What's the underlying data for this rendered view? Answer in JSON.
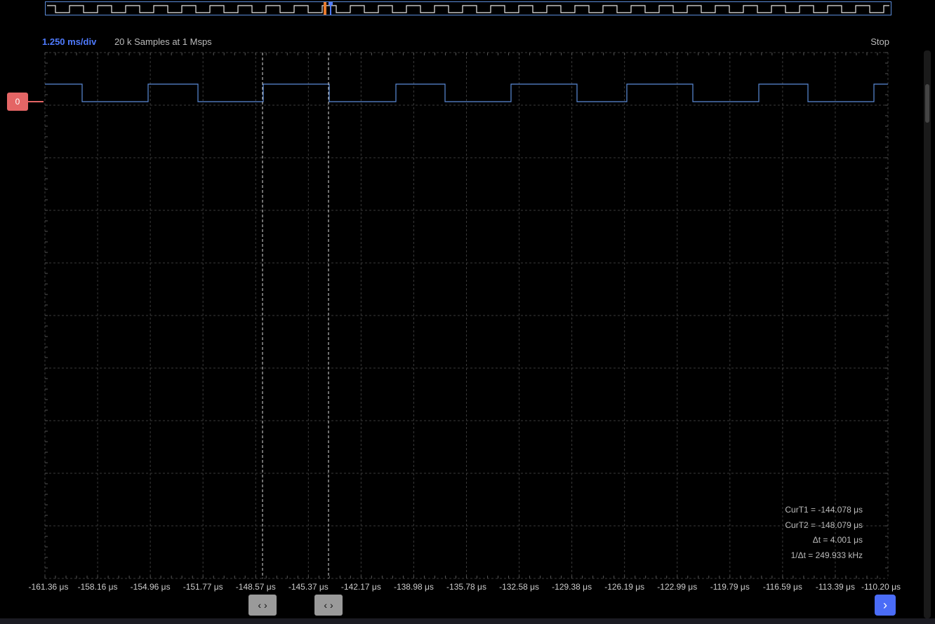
{
  "header": {
    "timebase": "1.250 ms/div",
    "sample_info": "20 k Samples at 1 Msps",
    "status": "Stop"
  },
  "channel": {
    "label": "0",
    "color": "#e46565",
    "trace_color": "#5b8bd8"
  },
  "x_axis": {
    "ticks": [
      "-161.36 μs",
      "-158.16 μs",
      "-154.96 μs",
      "-151.77 μs",
      "-148.57 μs",
      "-145.37 μs",
      "-142.17 μs",
      "-138.98 μs",
      "-135.78 μs",
      "-132.58 μs",
      "-129.38 μs",
      "-126.19 μs",
      "-122.99 μs",
      "-119.79 μs",
      "-116.59 μs",
      "-113.39 μs",
      "-110.20 μs"
    ]
  },
  "cursors": {
    "readouts": [
      "CurT1 = -144.078 μs",
      "CurT2 = -148.079 μs",
      "Δt = 4.001 μs",
      "1/Δt = 249.933 kHz"
    ],
    "cursor1_button": "‹ ›",
    "cursor2_button": "‹ ›"
  },
  "buttons": {
    "next": "›"
  },
  "icons": {
    "next": "chevron-right-icon",
    "cursor": "left-right-arrows-icon"
  }
}
